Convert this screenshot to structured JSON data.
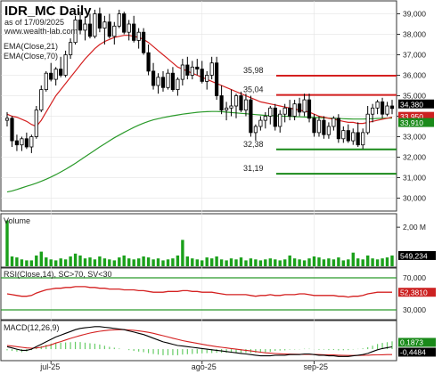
{
  "header": {
    "symbol": "IDR_MC Daily",
    "asof": "as of 17/09/2025",
    "site": "www.wealth-lab.com"
  },
  "colors": {
    "up": "#ffffff",
    "down": "#000000",
    "ema21": "#d42020",
    "ema70": "#2a9a2a",
    "resistance": "#d42020",
    "support": "#1a8a1a",
    "volume": "#1aa01a",
    "rsi": "#d42020",
    "rsi_band": "#2a9a2a",
    "macd": "#000000",
    "signal": "#d42020",
    "hist": "#66cc66",
    "price_tag": "#000000",
    "price_tag_red": "#cc2222",
    "price_tag_green": "#1a8a1a"
  },
  "chart_data": [
    {
      "type": "candlestick",
      "title": "IDR_MC Daily",
      "legend": [
        "EMA(Close,21)",
        "EMA(Close,70)"
      ],
      "ylim": [
        29500,
        39500
      ],
      "yticks": [
        30000,
        31000,
        32000,
        33000,
        34000,
        35000,
        36000,
        37000,
        38000,
        39000
      ],
      "ytick_labels": [
        "30,000",
        "31,000",
        "32,000",
        "33,000",
        "34,000",
        "35,000",
        "36,000",
        "37,000",
        "38,000",
        "39,000"
      ],
      "xticks": [
        {
          "label": "jul-25",
          "index": 9
        },
        {
          "label": "ago-25",
          "index": 40
        },
        {
          "label": "sep-25",
          "index": 63
        }
      ],
      "n": 80,
      "candles": [
        [
          33800,
          34200,
          33500,
          33900
        ],
        [
          33900,
          34000,
          32500,
          32800
        ],
        [
          32800,
          33100,
          32300,
          32600
        ],
        [
          32600,
          33000,
          32300,
          32900
        ],
        [
          32900,
          33200,
          32400,
          32500
        ],
        [
          32500,
          33100,
          32200,
          33000
        ],
        [
          33000,
          34500,
          32900,
          34300
        ],
        [
          34300,
          35500,
          34200,
          35300
        ],
        [
          35300,
          36200,
          35200,
          36100
        ],
        [
          36100,
          36600,
          35700,
          35800
        ],
        [
          35800,
          36400,
          35500,
          36300
        ],
        [
          36300,
          36900,
          35900,
          36000
        ],
        [
          36000,
          37200,
          35900,
          37000
        ],
        [
          37000,
          37800,
          36800,
          37600
        ],
        [
          37600,
          38900,
          37500,
          38700
        ],
        [
          38700,
          39100,
          38000,
          38200
        ],
        [
          38200,
          38800,
          37700,
          38500
        ],
        [
          38500,
          39000,
          37800,
          37900
        ],
        [
          37900,
          39200,
          37800,
          39000
        ],
        [
          39000,
          39300,
          38100,
          38300
        ],
        [
          38300,
          38900,
          37500,
          38600
        ],
        [
          38600,
          39000,
          37800,
          37900
        ],
        [
          37900,
          38600,
          37500,
          38400
        ],
        [
          38400,
          39200,
          38300,
          39000
        ],
        [
          39000,
          39100,
          38000,
          38100
        ],
        [
          38100,
          38700,
          37700,
          38500
        ],
        [
          38500,
          38900,
          37600,
          37700
        ],
        [
          37700,
          38300,
          37300,
          38100
        ],
        [
          38100,
          38300,
          37000,
          37100
        ],
        [
          37100,
          37500,
          36000,
          36200
        ],
        [
          36200,
          36600,
          35300,
          35500
        ],
        [
          35500,
          36100,
          35100,
          35900
        ],
        [
          35900,
          36200,
          35200,
          35400
        ],
        [
          35400,
          36300,
          35300,
          36100
        ],
        [
          36100,
          36400,
          35200,
          35300
        ],
        [
          35300,
          35900,
          35000,
          35800
        ],
        [
          35800,
          36800,
          35500,
          36500
        ],
        [
          36500,
          36900,
          35800,
          36000
        ],
        [
          36000,
          36700,
          35800,
          36400
        ],
        [
          36400,
          36800,
          36000,
          36300
        ],
        [
          36300,
          36700,
          35600,
          35700
        ],
        [
          35700,
          36200,
          35300,
          36000
        ],
        [
          36000,
          36900,
          35800,
          36600
        ],
        [
          36600,
          36900,
          34800,
          35000
        ],
        [
          35000,
          35500,
          34100,
          34300
        ],
        [
          34300,
          34700,
          33800,
          34400
        ],
        [
          34400,
          35300,
          34000,
          34500
        ],
        [
          34500,
          35100,
          33900,
          35000
        ],
        [
          35000,
          35200,
          34200,
          34300
        ],
        [
          34300,
          35100,
          34000,
          34800
        ],
        [
          34800,
          35000,
          33000,
          33200
        ],
        [
          33200,
          33600,
          32800,
          33500
        ],
        [
          33500,
          34000,
          33300,
          33800
        ],
        [
          33800,
          34200,
          33400,
          34000
        ],
        [
          34000,
          34500,
          33600,
          34400
        ],
        [
          34400,
          34600,
          33300,
          33500
        ],
        [
          33500,
          34300,
          33200,
          34100
        ],
        [
          34100,
          34600,
          33700,
          34400
        ],
        [
          34400,
          34800,
          33800,
          34000
        ],
        [
          34000,
          34800,
          33800,
          34600
        ],
        [
          34600,
          34900,
          34000,
          34200
        ],
        [
          34200,
          35100,
          34000,
          34800
        ],
        [
          34800,
          35100,
          33700,
          33900
        ],
        [
          33900,
          34100,
          33000,
          33200
        ],
        [
          33200,
          34000,
          33000,
          33800
        ],
        [
          33800,
          34000,
          32900,
          33100
        ],
        [
          33100,
          33700,
          32900,
          33500
        ],
        [
          33500,
          34000,
          33300,
          33900
        ],
        [
          33900,
          34100,
          32700,
          32900
        ],
        [
          32900,
          33500,
          32700,
          33300
        ],
        [
          33300,
          33600,
          32700,
          32800
        ],
        [
          32800,
          33400,
          32600,
          33200
        ],
        [
          33200,
          33700,
          32500,
          32600
        ],
        [
          32600,
          33400,
          32400,
          33200
        ],
        [
          33200,
          34500,
          33100,
          34100
        ],
        [
          34100,
          34600,
          33700,
          34400
        ],
        [
          34400,
          34800,
          34100,
          34700
        ],
        [
          34700,
          34900,
          33900,
          34100
        ],
        [
          34100,
          34700,
          34000,
          34500
        ],
        [
          34500,
          34800,
          34100,
          34380
        ]
      ],
      "ema21": [
        34100,
        34000,
        33950,
        33850,
        33750,
        33600,
        33500,
        33800,
        34200,
        34600,
        35000,
        35300,
        35600,
        35900,
        36200,
        36500,
        36800,
        37050,
        37300,
        37500,
        37650,
        37750,
        37850,
        37900,
        37950,
        37950,
        37900,
        37850,
        37750,
        37600,
        37400,
        37200,
        37000,
        36800,
        36600,
        36400,
        36300,
        36200,
        36100,
        36000,
        35900,
        35800,
        35700,
        35600,
        35500,
        35400,
        35300,
        35200,
        35100,
        35000,
        34900,
        34800,
        34700,
        34650,
        34600,
        34550,
        34500,
        34450,
        34400,
        34350,
        34300,
        34250,
        34200,
        34100,
        34000,
        33950,
        33900,
        33850,
        33800,
        33750,
        33700,
        33700,
        33650,
        33650,
        33700,
        33750,
        33800,
        33850,
        33900,
        33950
      ],
      "ema70": [
        30300,
        30350,
        30420,
        30500,
        30580,
        30650,
        30730,
        30820,
        30920,
        31030,
        31150,
        31280,
        31410,
        31550,
        31700,
        31860,
        32020,
        32180,
        32340,
        32500,
        32650,
        32800,
        32950,
        33080,
        33210,
        33330,
        33450,
        33560,
        33660,
        33750,
        33820,
        33880,
        33930,
        33980,
        34020,
        34060,
        34100,
        34130,
        34160,
        34190,
        34210,
        34220,
        34230,
        34230,
        34220,
        34200,
        34180,
        34160,
        34140,
        34120,
        34100,
        34080,
        34060,
        34040,
        34030,
        34020,
        34010,
        34000,
        33990,
        33980,
        33970,
        33960,
        33950,
        33940,
        33930,
        33920,
        33910,
        33900,
        33890,
        33880,
        33870,
        33860,
        33860,
        33860,
        33870,
        33880,
        33890,
        33900,
        33910,
        33910
      ],
      "levels": [
        {
          "value": 35980,
          "label": "35,98",
          "role": "resistance"
        },
        {
          "value": 35040,
          "label": "35,04",
          "role": "resistance"
        },
        {
          "value": 32380,
          "label": "32,38",
          "role": "support"
        },
        {
          "value": 31190,
          "label": "31,19",
          "role": "support"
        }
      ],
      "price_tags": [
        {
          "value": 34380,
          "label": "34,380",
          "role": "last"
        },
        {
          "value": 33950,
          "label": "33,950",
          "role": "ema21"
        },
        {
          "value": 33910,
          "label": "33,910",
          "role": "ema70"
        }
      ]
    },
    {
      "type": "bar",
      "title": "Volume",
      "ylim": [
        0,
        2.6
      ],
      "ytick_labels": [
        "2,00 M"
      ],
      "last_label": "549,234",
      "values_millions": [
        2.35,
        0.5,
        0.45,
        0.35,
        0.3,
        0.3,
        0.55,
        0.75,
        0.45,
        0.35,
        0.3,
        0.4,
        0.35,
        0.5,
        0.65,
        0.55,
        0.4,
        0.45,
        0.35,
        0.5,
        0.4,
        0.35,
        0.3,
        0.45,
        0.55,
        0.4,
        0.35,
        0.4,
        0.5,
        0.45,
        0.35,
        0.4,
        0.3,
        0.35,
        0.4,
        0.55,
        1.35,
        0.5,
        0.4,
        0.35,
        0.3,
        0.45,
        0.4,
        0.5,
        0.35,
        0.3,
        0.4,
        0.35,
        0.45,
        0.3,
        0.4,
        0.35,
        0.3,
        0.35,
        0.4,
        0.35,
        0.3,
        0.35,
        0.55,
        0.4,
        0.35,
        0.3,
        0.4,
        0.5,
        0.45,
        0.35,
        0.4,
        0.35,
        0.45,
        0.3,
        0.35,
        0.7,
        0.4,
        0.35,
        0.55,
        0.4,
        0.35,
        0.4,
        0.45,
        0.55
      ]
    },
    {
      "type": "line",
      "title": "RSI(Close,14), SC>70, SV<30",
      "ylim": [
        20,
        80
      ],
      "bands": [
        70,
        30
      ],
      "band_labels": [
        "70,000",
        "30,000"
      ],
      "last_label": "52,3810",
      "values": [
        50,
        49,
        48,
        47,
        47,
        48,
        51,
        53,
        55,
        56,
        57,
        57,
        58,
        58,
        59,
        59,
        59,
        58,
        58,
        57,
        57,
        56,
        56,
        56,
        55,
        55,
        55,
        54,
        54,
        53,
        52,
        52,
        52,
        53,
        53,
        53,
        54,
        54,
        53,
        53,
        52,
        52,
        52,
        51,
        50,
        49,
        49,
        49,
        49,
        49,
        48,
        47,
        48,
        48,
        49,
        48,
        48,
        49,
        49,
        49,
        50,
        50,
        49,
        48,
        48,
        48,
        48,
        48,
        47,
        47,
        46,
        47,
        47,
        48,
        50,
        51,
        52,
        52,
        52,
        52
      ]
    },
    {
      "type": "line",
      "title": "MACD(12,26,9)",
      "ylim": [
        -0.8,
        2.2
      ],
      "macd_label": "0,1873",
      "signal_label": "-0,4484",
      "macd": [
        0.2,
        0.1,
        0.0,
        -0.1,
        -0.1,
        0.0,
        0.2,
        0.4,
        0.6,
        0.8,
        1.0,
        1.15,
        1.3,
        1.45,
        1.6,
        1.7,
        1.75,
        1.8,
        1.85,
        1.85,
        1.8,
        1.75,
        1.7,
        1.65,
        1.6,
        1.5,
        1.4,
        1.3,
        1.2,
        1.05,
        0.9,
        0.75,
        0.6,
        0.5,
        0.4,
        0.3,
        0.25,
        0.2,
        0.15,
        0.1,
        0.05,
        0.0,
        -0.05,
        -0.1,
        -0.15,
        -0.2,
        -0.25,
        -0.3,
        -0.35,
        -0.4,
        -0.45,
        -0.5,
        -0.55,
        -0.55,
        -0.55,
        -0.5,
        -0.5,
        -0.5,
        -0.45,
        -0.45,
        -0.45,
        -0.4,
        -0.4,
        -0.45,
        -0.5,
        -0.5,
        -0.55,
        -0.55,
        -0.6,
        -0.6,
        -0.6,
        -0.55,
        -0.5,
        -0.45,
        -0.35,
        -0.2,
        -0.05,
        0.05,
        0.12,
        0.19
      ],
      "signal": [
        0.3,
        0.25,
        0.2,
        0.15,
        0.1,
        0.08,
        0.1,
        0.15,
        0.25,
        0.35,
        0.5,
        0.62,
        0.75,
        0.88,
        1.0,
        1.12,
        1.22,
        1.32,
        1.4,
        1.47,
        1.52,
        1.56,
        1.58,
        1.6,
        1.6,
        1.58,
        1.55,
        1.5,
        1.45,
        1.38,
        1.3,
        1.2,
        1.1,
        1.0,
        0.9,
        0.8,
        0.7,
        0.62,
        0.55,
        0.47,
        0.4,
        0.33,
        0.27,
        0.2,
        0.15,
        0.1,
        0.05,
        0.0,
        -0.05,
        -0.1,
        -0.15,
        -0.2,
        -0.25,
        -0.3,
        -0.33,
        -0.36,
        -0.38,
        -0.4,
        -0.41,
        -0.42,
        -0.43,
        -0.43,
        -0.43,
        -0.44,
        -0.45,
        -0.46,
        -0.47,
        -0.48,
        -0.5,
        -0.51,
        -0.52,
        -0.52,
        -0.52,
        -0.51,
        -0.5,
        -0.48,
        -0.47,
        -0.46,
        -0.45,
        -0.45
      ],
      "hist_scale": 1.0
    }
  ]
}
